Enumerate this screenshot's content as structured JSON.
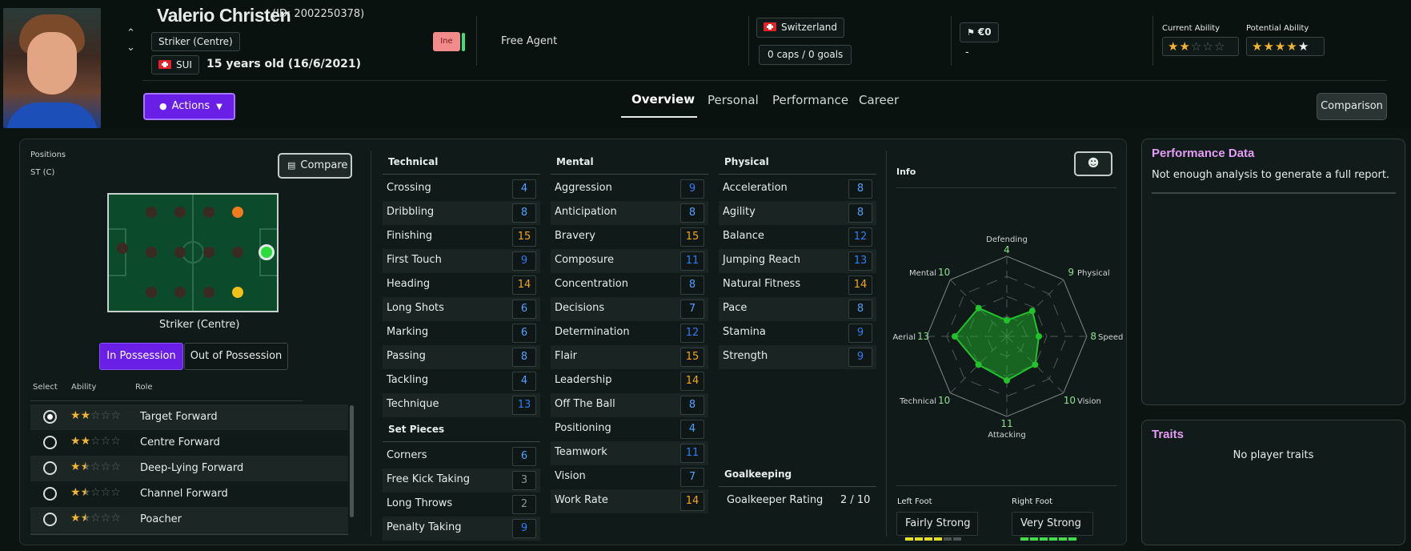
{
  "player": {
    "name": "Valerio Christen",
    "id_text": "(ID: 2002250378)",
    "position": "Striker (Centre)",
    "nation_code": "SUI",
    "age_text": "15 years old (16/6/2021)",
    "status_badge": "Ine",
    "club": "Free Agent",
    "nationality": "Switzerland",
    "caps": "0 caps / 0 goals",
    "value": "€0",
    "value_sub": "-",
    "current_ability_label": "Current Ability",
    "potential_ability_label": "Potential Ability",
    "current_ability_stars": 2,
    "potential_ability_stars": 4.5
  },
  "actions_label": "Actions",
  "tabs": [
    {
      "label": "Overview",
      "active": true
    },
    {
      "label": "Personal",
      "active": false
    },
    {
      "label": "Performance",
      "active": false
    },
    {
      "label": "Career",
      "active": false
    }
  ],
  "comparison_label": "Comparison",
  "positions": {
    "title": "Positions",
    "value": "ST (C)",
    "compare_label": "Compare",
    "pitch_label": "Striker (Centre)",
    "in_possession": "In Possession",
    "out_of_possession": "Out of Possession"
  },
  "roles": {
    "headers": {
      "select": "Select",
      "ability": "Ability",
      "role": "Role"
    },
    "items": [
      {
        "name": "Target Forward",
        "stars": 2,
        "selected": true
      },
      {
        "name": "Centre Forward",
        "stars": 2,
        "selected": false
      },
      {
        "name": "Deep-Lying Forward",
        "stars": 1.5,
        "selected": false
      },
      {
        "name": "Channel Forward",
        "stars": 1.5,
        "selected": false
      },
      {
        "name": "Poacher",
        "stars": 1.5,
        "selected": false
      }
    ]
  },
  "technical": {
    "title": "Technical",
    "items": [
      {
        "name": "Crossing",
        "value": "4"
      },
      {
        "name": "Dribbling",
        "value": "8"
      },
      {
        "name": "Finishing",
        "value": "15"
      },
      {
        "name": "First Touch",
        "value": "9"
      },
      {
        "name": "Heading",
        "value": "14"
      },
      {
        "name": "Long Shots",
        "value": "6"
      },
      {
        "name": "Marking",
        "value": "6"
      },
      {
        "name": "Passing",
        "value": "8"
      },
      {
        "name": "Tackling",
        "value": "4"
      },
      {
        "name": "Technique",
        "value": "13"
      }
    ]
  },
  "set_pieces": {
    "title": "Set Pieces",
    "items": [
      {
        "name": "Corners",
        "value": "6"
      },
      {
        "name": "Free Kick Taking",
        "value": "3"
      },
      {
        "name": "Long Throws",
        "value": "2"
      },
      {
        "name": "Penalty Taking",
        "value": "9"
      }
    ]
  },
  "mental": {
    "title": "Mental",
    "items": [
      {
        "name": "Aggression",
        "value": "9"
      },
      {
        "name": "Anticipation",
        "value": "8"
      },
      {
        "name": "Bravery",
        "value": "15"
      },
      {
        "name": "Composure",
        "value": "11"
      },
      {
        "name": "Concentration",
        "value": "8"
      },
      {
        "name": "Decisions",
        "value": "7"
      },
      {
        "name": "Determination",
        "value": "12"
      },
      {
        "name": "Flair",
        "value": "15"
      },
      {
        "name": "Leadership",
        "value": "14"
      },
      {
        "name": "Off The Ball",
        "value": "8"
      },
      {
        "name": "Positioning",
        "value": "4"
      },
      {
        "name": "Teamwork",
        "value": "11"
      },
      {
        "name": "Vision",
        "value": "7"
      },
      {
        "name": "Work Rate",
        "value": "14"
      }
    ]
  },
  "physical": {
    "title": "Physical",
    "items": [
      {
        "name": "Acceleration",
        "value": "8"
      },
      {
        "name": "Agility",
        "value": "8"
      },
      {
        "name": "Balance",
        "value": "12"
      },
      {
        "name": "Jumping Reach",
        "value": "13"
      },
      {
        "name": "Natural Fitness",
        "value": "14"
      },
      {
        "name": "Pace",
        "value": "8"
      },
      {
        "name": "Stamina",
        "value": "9"
      },
      {
        "name": "Strength",
        "value": "9"
      }
    ]
  },
  "goalkeeping": {
    "title": "Goalkeeping",
    "label": "Goalkeeper Rating",
    "value": "2 / 10"
  },
  "info": {
    "title": "Info",
    "radar": [
      {
        "label": "Defending",
        "value": "4"
      },
      {
        "label": "Physical",
        "value": "9"
      },
      {
        "label": "Speed",
        "value": "8"
      },
      {
        "label": "Vision",
        "value": "10"
      },
      {
        "label": "Attacking",
        "value": "11"
      },
      {
        "label": "Technical",
        "value": "10"
      },
      {
        "label": "Aerial",
        "value": "13"
      },
      {
        "label": "Mental",
        "value": "10"
      }
    ],
    "left_foot_label": "Left Foot",
    "left_foot": "Fairly Strong",
    "left_foot_level": 4,
    "right_foot_label": "Right Foot",
    "right_foot": "Very Strong",
    "right_foot_level": 6
  },
  "performance": {
    "title": "Performance Data",
    "text": "Not enough analysis to generate a full report."
  },
  "traits": {
    "title": "Traits",
    "text": "No player traits"
  },
  "colors": {
    "accent_purple": "#6a1fe6",
    "panel_title": "#e49cf5",
    "star": "#f2b431",
    "radar_green": "#22c22a"
  }
}
